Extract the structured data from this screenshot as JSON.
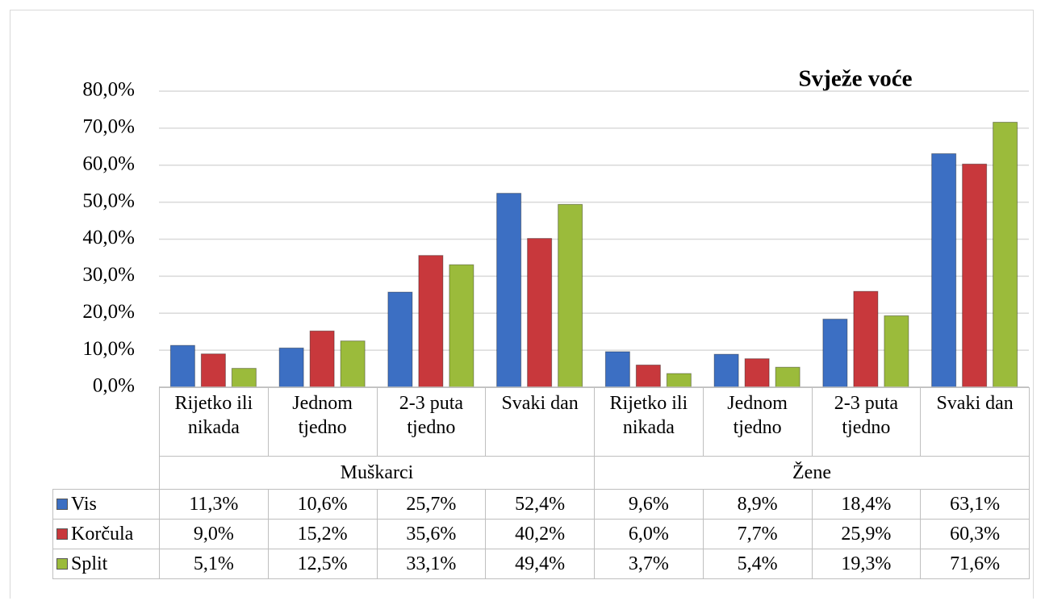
{
  "chart_data": {
    "type": "bar",
    "title": "Svježe voće",
    "categories": [
      "Rijetko ili nikada",
      "Jednom tjedno",
      "2-3 puta tjedno",
      "Svaki dan",
      "Rijetko ili nikada",
      "Jednom tjedno",
      "2-3 puta tjedno",
      "Svaki dan"
    ],
    "groups": [
      "Muškarci",
      "Žene"
    ],
    "series": [
      {
        "name": "Vis",
        "color": "#3c6fc3",
        "values": [
          11.3,
          10.6,
          25.7,
          52.4,
          9.6,
          8.9,
          18.4,
          63.1
        ],
        "value_labels": [
          "11,3%",
          "10,6%",
          "25,7%",
          "52,4%",
          "9,6%",
          "8,9%",
          "18,4%",
          "63,1%"
        ]
      },
      {
        "name": "Korčula",
        "color": "#c8383c",
        "values": [
          9.0,
          15.2,
          35.6,
          40.2,
          6.0,
          7.7,
          25.9,
          60.3
        ],
        "value_labels": [
          "9,0%",
          "15,2%",
          "35,6%",
          "40,2%",
          "6,0%",
          "7,7%",
          "25,9%",
          "60,3%"
        ]
      },
      {
        "name": "Split",
        "color": "#9bbb3b",
        "values": [
          5.1,
          12.5,
          33.1,
          49.4,
          3.7,
          5.4,
          19.3,
          71.6
        ],
        "value_labels": [
          "5,1%",
          "12,5%",
          "33,1%",
          "49,4%",
          "3,7%",
          "5,4%",
          "19,3%",
          "71,6%"
        ]
      }
    ],
    "ylim": [
      0,
      80
    ],
    "yticks": [
      {
        "value": 0,
        "label": "0,0%"
      },
      {
        "value": 10,
        "label": "10,0%"
      },
      {
        "value": 20,
        "label": "20,0%"
      },
      {
        "value": 30,
        "label": "30,0%"
      },
      {
        "value": 40,
        "label": "40,0%"
      },
      {
        "value": 50,
        "label": "50,0%"
      },
      {
        "value": 60,
        "label": "60,0%"
      },
      {
        "value": 70,
        "label": "70,0%"
      },
      {
        "value": 80,
        "label": "80,0%"
      }
    ],
    "grid": true
  }
}
